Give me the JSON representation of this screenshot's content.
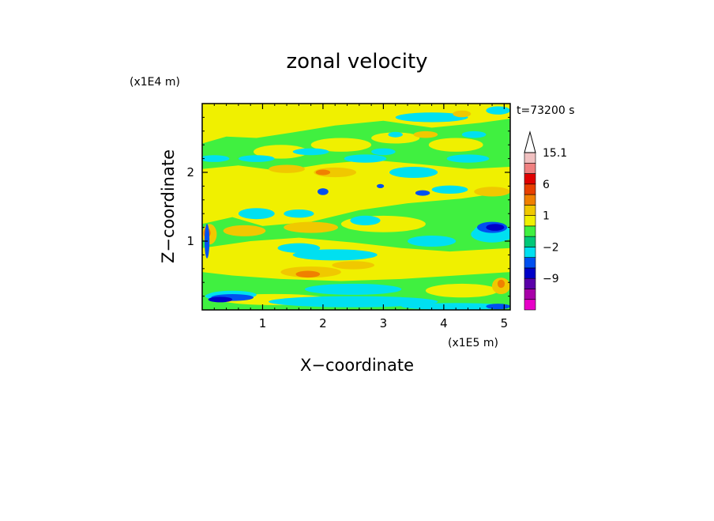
{
  "chart_data": {
    "type": "heatmap",
    "title": "zonal velocity",
    "xlabel": "X−coordinate",
    "ylabel": "Z−coordinate",
    "x_unit": "(x1E5 m)",
    "y_unit": "(x1E4 m)",
    "time_label": "t=73200 s",
    "xlim": [
      0,
      5.1
    ],
    "ylim": [
      0,
      3.0
    ],
    "x_ticks": [
      1,
      2,
      3,
      4,
      5
    ],
    "y_ticks": [
      1,
      2
    ],
    "x_tick_labels": [
      "1",
      "2",
      "3",
      "4",
      "5"
    ],
    "y_tick_labels": [
      "1",
      "2"
    ],
    "colorbar": {
      "levels": [
        -15,
        -12,
        -9,
        -6,
        -4,
        -2,
        -1,
        0,
        1,
        2,
        4,
        6,
        9,
        12,
        15.1
      ],
      "colors": [
        "#e800c8",
        "#a800a8",
        "#5a00a8",
        "#0000c8",
        "#0050f0",
        "#00e0f0",
        "#00c878",
        "#40f040",
        "#f0f000",
        "#f0c800",
        "#f08000",
        "#e84000",
        "#e00000",
        "#f08080",
        "#f0c0c0"
      ],
      "tick_labels": [
        "15.1",
        "6",
        "1",
        "−2",
        "−9"
      ],
      "tick_values": [
        15.1,
        6,
        1,
        -2,
        -9
      ]
    },
    "fields": [
      {
        "level": 1,
        "points": [
          [
            0.0,
            3.0
          ],
          [
            5.1,
            3.0
          ],
          [
            5.1,
            2.78
          ],
          [
            4.6,
            2.72
          ],
          [
            3.8,
            2.65
          ],
          [
            3.0,
            2.75
          ],
          [
            2.2,
            2.68
          ],
          [
            1.5,
            2.58
          ],
          [
            0.9,
            2.5
          ],
          [
            0.4,
            2.52
          ],
          [
            0.0,
            2.42
          ]
        ]
      },
      {
        "level": 1,
        "points": [
          [
            0.0,
            2.05
          ],
          [
            0.6,
            2.1
          ],
          [
            1.3,
            2.02
          ],
          [
            2.0,
            2.12
          ],
          [
            2.8,
            2.18
          ],
          [
            3.6,
            2.12
          ],
          [
            4.4,
            2.05
          ],
          [
            5.1,
            2.08
          ],
          [
            5.1,
            1.72
          ],
          [
            4.3,
            1.62
          ],
          [
            3.4,
            1.55
          ],
          [
            2.6,
            1.45
          ],
          [
            1.8,
            1.28
          ],
          [
            1.0,
            1.22
          ],
          [
            0.5,
            1.35
          ],
          [
            0.0,
            1.25
          ]
        ]
      },
      {
        "level": 1,
        "points": [
          [
            0.0,
            0.9
          ],
          [
            0.8,
            1.0
          ],
          [
            1.6,
            1.05
          ],
          [
            2.5,
            0.98
          ],
          [
            3.3,
            0.9
          ],
          [
            4.1,
            0.85
          ],
          [
            5.1,
            0.9
          ],
          [
            5.1,
            0.55
          ],
          [
            4.2,
            0.5
          ],
          [
            3.3,
            0.45
          ],
          [
            2.3,
            0.42
          ],
          [
            1.3,
            0.45
          ],
          [
            0.5,
            0.5
          ],
          [
            0.0,
            0.55
          ]
        ]
      },
      {
        "level": 0,
        "points": [
          [
            0.0,
            2.42
          ],
          [
            0.4,
            2.52
          ],
          [
            0.9,
            2.5
          ],
          [
            1.5,
            2.58
          ],
          [
            2.2,
            2.68
          ],
          [
            3.0,
            2.75
          ],
          [
            3.8,
            2.65
          ],
          [
            4.6,
            2.72
          ],
          [
            5.1,
            2.78
          ],
          [
            5.1,
            2.08
          ],
          [
            4.4,
            2.05
          ],
          [
            3.6,
            2.12
          ],
          [
            2.8,
            2.18
          ],
          [
            2.0,
            2.12
          ],
          [
            1.3,
            2.02
          ],
          [
            0.6,
            2.1
          ],
          [
            0.0,
            2.05
          ]
        ]
      },
      {
        "level": 0,
        "points": [
          [
            0.0,
            1.25
          ],
          [
            0.5,
            1.35
          ],
          [
            1.0,
            1.22
          ],
          [
            1.8,
            1.28
          ],
          [
            2.6,
            1.45
          ],
          [
            3.4,
            1.55
          ],
          [
            4.3,
            1.62
          ],
          [
            5.1,
            1.72
          ],
          [
            5.1,
            0.9
          ],
          [
            4.1,
            0.85
          ],
          [
            3.3,
            0.9
          ],
          [
            2.5,
            0.98
          ],
          [
            1.6,
            1.05
          ],
          [
            0.8,
            1.0
          ],
          [
            0.0,
            0.9
          ]
        ]
      },
      {
        "level": 0,
        "points": [
          [
            0.0,
            0.55
          ],
          [
            0.5,
            0.5
          ],
          [
            1.3,
            0.45
          ],
          [
            2.3,
            0.42
          ],
          [
            3.3,
            0.45
          ],
          [
            4.2,
            0.5
          ],
          [
            5.1,
            0.55
          ],
          [
            5.1,
            0.0
          ],
          [
            0.0,
            0.0
          ]
        ]
      }
    ],
    "blobs": [
      {
        "level": 1,
        "cx": 0.3,
        "cy": 2.72,
        "rx": 0.25,
        "ry": 0.1
      },
      {
        "level": 1,
        "cx": 1.6,
        "cy": 2.82,
        "rx": 0.4,
        "ry": 0.08
      },
      {
        "level": 1,
        "cx": 2.7,
        "cy": 2.9,
        "rx": 0.35,
        "ry": 0.07
      },
      {
        "level": 1,
        "cx": 3.6,
        "cy": 2.9,
        "rx": 0.5,
        "ry": 0.08
      },
      {
        "level": 1,
        "cx": 4.5,
        "cy": 2.88,
        "rx": 0.3,
        "ry": 0.07
      },
      {
        "level": 1,
        "cx": 1.3,
        "cy": 2.3,
        "rx": 0.45,
        "ry": 0.1
      },
      {
        "level": 1,
        "cx": 2.3,
        "cy": 2.4,
        "rx": 0.5,
        "ry": 0.1
      },
      {
        "level": 1,
        "cx": 3.2,
        "cy": 2.5,
        "rx": 0.4,
        "ry": 0.08
      },
      {
        "level": 1,
        "cx": 4.2,
        "cy": 2.4,
        "rx": 0.45,
        "ry": 0.1
      },
      {
        "level": 1,
        "cx": 1.5,
        "cy": 1.7,
        "rx": 0.6,
        "ry": 0.15
      },
      {
        "level": 1,
        "cx": 3.0,
        "cy": 1.25,
        "rx": 0.7,
        "ry": 0.12
      },
      {
        "level": 1,
        "cx": 0.5,
        "cy": 0.75,
        "rx": 0.4,
        "ry": 0.1
      },
      {
        "level": 1,
        "cx": 1.2,
        "cy": 0.15,
        "rx": 0.9,
        "ry": 0.08
      },
      {
        "level": 1,
        "cx": 4.3,
        "cy": 0.28,
        "rx": 0.6,
        "ry": 0.1
      },
      {
        "level": 2,
        "cx": 0.12,
        "cy": 1.1,
        "rx": 0.12,
        "ry": 0.15
      },
      {
        "level": 2,
        "cx": 0.7,
        "cy": 1.15,
        "rx": 0.35,
        "ry": 0.08
      },
      {
        "level": 2,
        "cx": 1.8,
        "cy": 1.2,
        "rx": 0.45,
        "ry": 0.08
      },
      {
        "level": 2,
        "cx": 1.8,
        "cy": 0.55,
        "rx": 0.5,
        "ry": 0.08
      },
      {
        "level": 2,
        "cx": 2.5,
        "cy": 0.65,
        "rx": 0.35,
        "ry": 0.06
      },
      {
        "level": 2,
        "cx": 1.4,
        "cy": 2.05,
        "rx": 0.3,
        "ry": 0.06
      },
      {
        "level": 2,
        "cx": 2.2,
        "cy": 2.0,
        "rx": 0.35,
        "ry": 0.07
      },
      {
        "level": 2,
        "cx": 4.8,
        "cy": 1.72,
        "rx": 0.3,
        "ry": 0.07
      },
      {
        "level": 2,
        "cx": 4.95,
        "cy": 0.35,
        "rx": 0.15,
        "ry": 0.12
      },
      {
        "level": 2,
        "cx": 3.7,
        "cy": 2.55,
        "rx": 0.2,
        "ry": 0.05
      },
      {
        "level": 2,
        "cx": 4.3,
        "cy": 2.85,
        "rx": 0.15,
        "ry": 0.05
      },
      {
        "level": 3,
        "cx": 0.08,
        "cy": 1.12,
        "rx": 0.06,
        "ry": 0.07
      },
      {
        "level": 3,
        "cx": 1.75,
        "cy": 0.52,
        "rx": 0.2,
        "ry": 0.05
      },
      {
        "level": 3,
        "cx": 4.95,
        "cy": 0.38,
        "rx": 0.06,
        "ry": 0.06
      },
      {
        "level": 3,
        "cx": 2.0,
        "cy": 2.0,
        "rx": 0.12,
        "ry": 0.04
      },
      {
        "level": -1,
        "cx": 0.2,
        "cy": 2.2,
        "rx": 0.25,
        "ry": 0.05
      },
      {
        "level": -1,
        "cx": 0.9,
        "cy": 2.2,
        "rx": 0.3,
        "ry": 0.05
      },
      {
        "level": -1,
        "cx": 1.8,
        "cy": 2.3,
        "rx": 0.3,
        "ry": 0.05
      },
      {
        "level": -1,
        "cx": 2.7,
        "cy": 2.2,
        "rx": 0.35,
        "ry": 0.06
      },
      {
        "level": -1,
        "cx": 3.5,
        "cy": 2.0,
        "rx": 0.4,
        "ry": 0.08
      },
      {
        "level": -1,
        "cx": 4.4,
        "cy": 2.2,
        "rx": 0.35,
        "ry": 0.06
      },
      {
        "level": -1,
        "cx": 0.9,
        "cy": 1.4,
        "rx": 0.3,
        "ry": 0.08
      },
      {
        "level": -1,
        "cx": 2.2,
        "cy": 0.8,
        "rx": 0.7,
        "ry": 0.08
      },
      {
        "level": -1,
        "cx": 3.8,
        "cy": 1.0,
        "rx": 0.4,
        "ry": 0.08
      },
      {
        "level": -1,
        "cx": 2.5,
        "cy": 0.3,
        "rx": 0.8,
        "ry": 0.08
      },
      {
        "level": -1,
        "cx": 4.8,
        "cy": 1.1,
        "rx": 0.35,
        "ry": 0.12
      },
      {
        "level": -1,
        "cx": 3.8,
        "cy": 2.8,
        "rx": 0.6,
        "ry": 0.07
      },
      {
        "level": -1,
        "cx": 4.9,
        "cy": 2.9,
        "rx": 0.2,
        "ry": 0.06
      },
      {
        "level": -1,
        "cx": 0.5,
        "cy": 0.22,
        "rx": 0.4,
        "ry": 0.06
      },
      {
        "level": -2,
        "cx": 1.6,
        "cy": 0.9,
        "rx": 0.35,
        "ry": 0.07
      },
      {
        "level": -2,
        "cx": 1.6,
        "cy": 1.4,
        "rx": 0.25,
        "ry": 0.06
      },
      {
        "level": -2,
        "cx": 2.7,
        "cy": 1.3,
        "rx": 0.25,
        "ry": 0.07
      },
      {
        "level": -2,
        "cx": 4.1,
        "cy": 1.75,
        "rx": 0.3,
        "ry": 0.06
      },
      {
        "level": -2,
        "cx": 3.0,
        "cy": 2.3,
        "rx": 0.2,
        "ry": 0.05
      },
      {
        "level": -2,
        "cx": 4.5,
        "cy": 2.55,
        "rx": 0.2,
        "ry": 0.05
      },
      {
        "level": -2,
        "cx": 3.2,
        "cy": 2.55,
        "rx": 0.12,
        "ry": 0.04
      },
      {
        "level": -2,
        "cx": 4.8,
        "cy": 1.15,
        "rx": 0.3,
        "ry": 0.1
      },
      {
        "level": -2,
        "cx": 2.5,
        "cy": 0.12,
        "rx": 1.4,
        "ry": 0.08
      },
      {
        "level": -2,
        "cx": 4.2,
        "cy": 0.05,
        "rx": 0.9,
        "ry": 0.05
      },
      {
        "level": -2,
        "cx": 0.4,
        "cy": 0.2,
        "rx": 0.35,
        "ry": 0.06
      },
      {
        "level": -3,
        "cx": 4.8,
        "cy": 1.2,
        "rx": 0.25,
        "ry": 0.08
      },
      {
        "level": -3,
        "cx": 2.0,
        "cy": 1.72,
        "rx": 0.09,
        "ry": 0.05
      },
      {
        "level": -3,
        "cx": 2.95,
        "cy": 1.8,
        "rx": 0.06,
        "ry": 0.03
      },
      {
        "level": -3,
        "cx": 3.65,
        "cy": 1.7,
        "rx": 0.12,
        "ry": 0.04
      },
      {
        "level": -3,
        "cx": 0.5,
        "cy": 0.18,
        "rx": 0.35,
        "ry": 0.05
      },
      {
        "level": -3,
        "cx": 0.08,
        "cy": 1.0,
        "rx": 0.04,
        "ry": 0.25
      },
      {
        "level": -3,
        "cx": 4.9,
        "cy": 0.05,
        "rx": 0.2,
        "ry": 0.04
      },
      {
        "level": -4,
        "cx": 4.85,
        "cy": 1.2,
        "rx": 0.15,
        "ry": 0.05
      },
      {
        "level": -4,
        "cx": 0.3,
        "cy": 0.15,
        "rx": 0.2,
        "ry": 0.04
      }
    ]
  }
}
